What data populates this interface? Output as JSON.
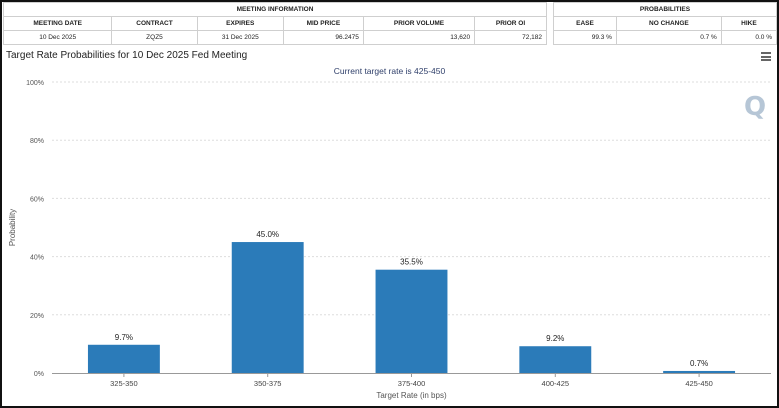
{
  "meeting_table": {
    "group_header": "MEETING INFORMATION",
    "columns": [
      "MEETING DATE",
      "CONTRACT",
      "EXPIRES",
      "MID PRICE",
      "PRIOR VOLUME",
      "PRIOR OI"
    ],
    "row": [
      "10 Dec 2025",
      "ZQZ5",
      "31 Dec 2025",
      "96.2475",
      "13,620",
      "72,182"
    ]
  },
  "prob_table": {
    "group_header": "PROBABILITIES",
    "columns": [
      "EASE",
      "NO CHANGE",
      "HIKE"
    ],
    "row": [
      "99.3 %",
      "0.7 %",
      "0.0 %"
    ]
  },
  "chart": {
    "title": "Target Rate Probabilities for 10 Dec 2025 Fed Meeting",
    "subtitle": "Current target rate is 425-450",
    "menu_icon": "hamburger-menu-icon",
    "watermark_icon": "q-logo-icon",
    "bar_color": "#2b7bb9"
  },
  "chart_data": {
    "type": "bar",
    "categories": [
      "325-350",
      "350-375",
      "375-400",
      "400-425",
      "425-450"
    ],
    "values": [
      9.7,
      45.0,
      35.5,
      9.2,
      0.7
    ],
    "data_labels": [
      "9.7%",
      "45.0%",
      "35.5%",
      "9.2%",
      "0.7%"
    ],
    "xlabel": "Target Rate (in bps)",
    "ylabel": "Probability",
    "ylim": [
      0,
      100
    ],
    "yticks": [
      0,
      20,
      40,
      60,
      80,
      100
    ],
    "ytick_labels": [
      "0%",
      "20%",
      "40%",
      "60%",
      "80%",
      "100%"
    ],
    "grid": true
  }
}
